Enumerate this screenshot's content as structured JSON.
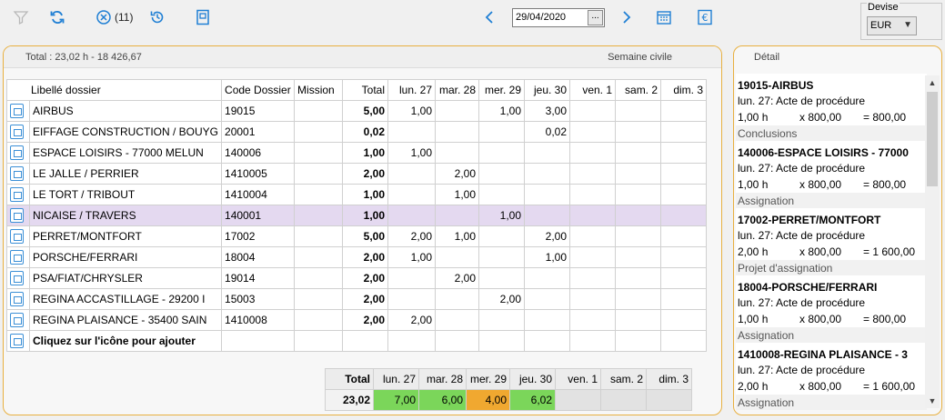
{
  "toolbar": {
    "filter_count": "(11)",
    "date_value": "29/04/2020",
    "date_button": "..."
  },
  "devise": {
    "label": "Devise",
    "selected": "EUR"
  },
  "summary": {
    "total_text": "Total : 23,02 h - 18 426,67",
    "week_mode": "Semaine civile"
  },
  "grid": {
    "headers": [
      "Libellé dossier",
      "Code Dossier",
      "Mission",
      "Total",
      "lun. 27",
      "mar. 28",
      "mer. 29",
      "jeu. 30",
      "ven. 1",
      "sam. 2",
      "dim. 3"
    ],
    "rows": [
      {
        "label": "AIRBUS",
        "code": "19015",
        "mission": "",
        "total": "5,00",
        "d": [
          "1,00",
          "",
          "1,00",
          "3,00",
          "",
          "",
          ""
        ]
      },
      {
        "label": "EIFFAGE CONSTRUCTION / BOUYG",
        "code": "20001",
        "mission": "",
        "total": "0,02",
        "d": [
          "",
          "",
          "",
          "0,02",
          "",
          "",
          ""
        ]
      },
      {
        "label": "ESPACE LOISIRS  - 77000 MELUN",
        "code": "140006",
        "mission": "",
        "total": "1,00",
        "d": [
          "1,00",
          "",
          "",
          "",
          "",
          "",
          ""
        ]
      },
      {
        "label": "LE JALLE / PERRIER",
        "code": "1410005",
        "mission": "",
        "total": "2,00",
        "d": [
          "",
          "2,00",
          "",
          "",
          "",
          "",
          ""
        ]
      },
      {
        "label": "LE TORT / TRIBOUT",
        "code": "1410004",
        "mission": "",
        "total": "1,00",
        "d": [
          "",
          "1,00",
          "",
          "",
          "",
          "",
          ""
        ]
      },
      {
        "label": "NICAISE / TRAVERS",
        "code": "140001",
        "mission": "",
        "total": "1,00",
        "d": [
          "",
          "",
          "1,00",
          "",
          "",
          "",
          ""
        ]
      },
      {
        "label": "PERRET/MONTFORT",
        "code": "17002",
        "mission": "",
        "total": "5,00",
        "d": [
          "2,00",
          "1,00",
          "",
          "2,00",
          "",
          "",
          ""
        ]
      },
      {
        "label": "PORSCHE/FERRARI",
        "code": "18004",
        "mission": "",
        "total": "2,00",
        "d": [
          "1,00",
          "",
          "",
          "1,00",
          "",
          "",
          ""
        ]
      },
      {
        "label": "PSA/FIAT/CHRYSLER",
        "code": "19014",
        "mission": "",
        "total": "2,00",
        "d": [
          "",
          "2,00",
          "",
          "",
          "",
          "",
          ""
        ]
      },
      {
        "label": "REGINA ACCASTILLAGE  - 29200 I",
        "code": "15003",
        "mission": "",
        "total": "2,00",
        "d": [
          "",
          "",
          "2,00",
          "",
          "",
          "",
          ""
        ]
      },
      {
        "label": "REGINA PLAISANCE  - 35400 SAIN",
        "code": "1410008",
        "mission": "",
        "total": "2,00",
        "d": [
          "2,00",
          "",
          "",
          "",
          "",
          "",
          ""
        ]
      },
      {
        "label": "Cliquez sur l'icône pour ajouter",
        "code": "",
        "mission": "",
        "total": "",
        "d": [
          "",
          "",
          "",
          "",
          "",
          "",
          ""
        ]
      }
    ]
  },
  "footer": {
    "total_label": "Total",
    "days": [
      "lun. 27",
      "mar. 28",
      "mer. 29",
      "jeu. 30",
      "ven. 1",
      "sam. 2",
      "dim. 3"
    ],
    "grand_total": "23,02",
    "day_totals": [
      "7,00",
      "6,00",
      "4,00",
      "6,02",
      "",
      "",
      ""
    ],
    "day_colors": [
      "#7bd65a",
      "#7bd65a",
      "#f0a830",
      "#7bd65a",
      "#e2e2e2",
      "#e2e2e2",
      "#e2e2e2"
    ]
  },
  "detail": {
    "title": "Détail",
    "items": [
      {
        "name": "19015-AIRBUS",
        "line": "lun. 27: Acte de procédure",
        "qty": "1,00 h",
        "rate": "x 800,00",
        "amount": "= 800,00",
        "tag": "Conclusions"
      },
      {
        "name": "140006-ESPACE LOISIRS  - 77000",
        "line": "lun. 27: Acte de procédure",
        "qty": "1,00 h",
        "rate": "x 800,00",
        "amount": "= 800,00",
        "tag": "Assignation"
      },
      {
        "name": "17002-PERRET/MONTFORT",
        "line": "lun. 27: Acte de procédure",
        "qty": "2,00 h",
        "rate": "x 800,00",
        "amount": "= 1 600,00",
        "tag": "Projet d'assignation"
      },
      {
        "name": "18004-PORSCHE/FERRARI",
        "line": "lun. 27: Acte de procédure",
        "qty": "1,00 h",
        "rate": "x 800,00",
        "amount": "= 800,00",
        "tag": "Assignation"
      },
      {
        "name": "1410008-REGINA PLAISANCE  - 3",
        "line": "lun. 27: Acte de procédure",
        "qty": "2,00 h",
        "rate": "x 800,00",
        "amount": "= 1 600,00",
        "tag": "Assignation"
      }
    ]
  }
}
